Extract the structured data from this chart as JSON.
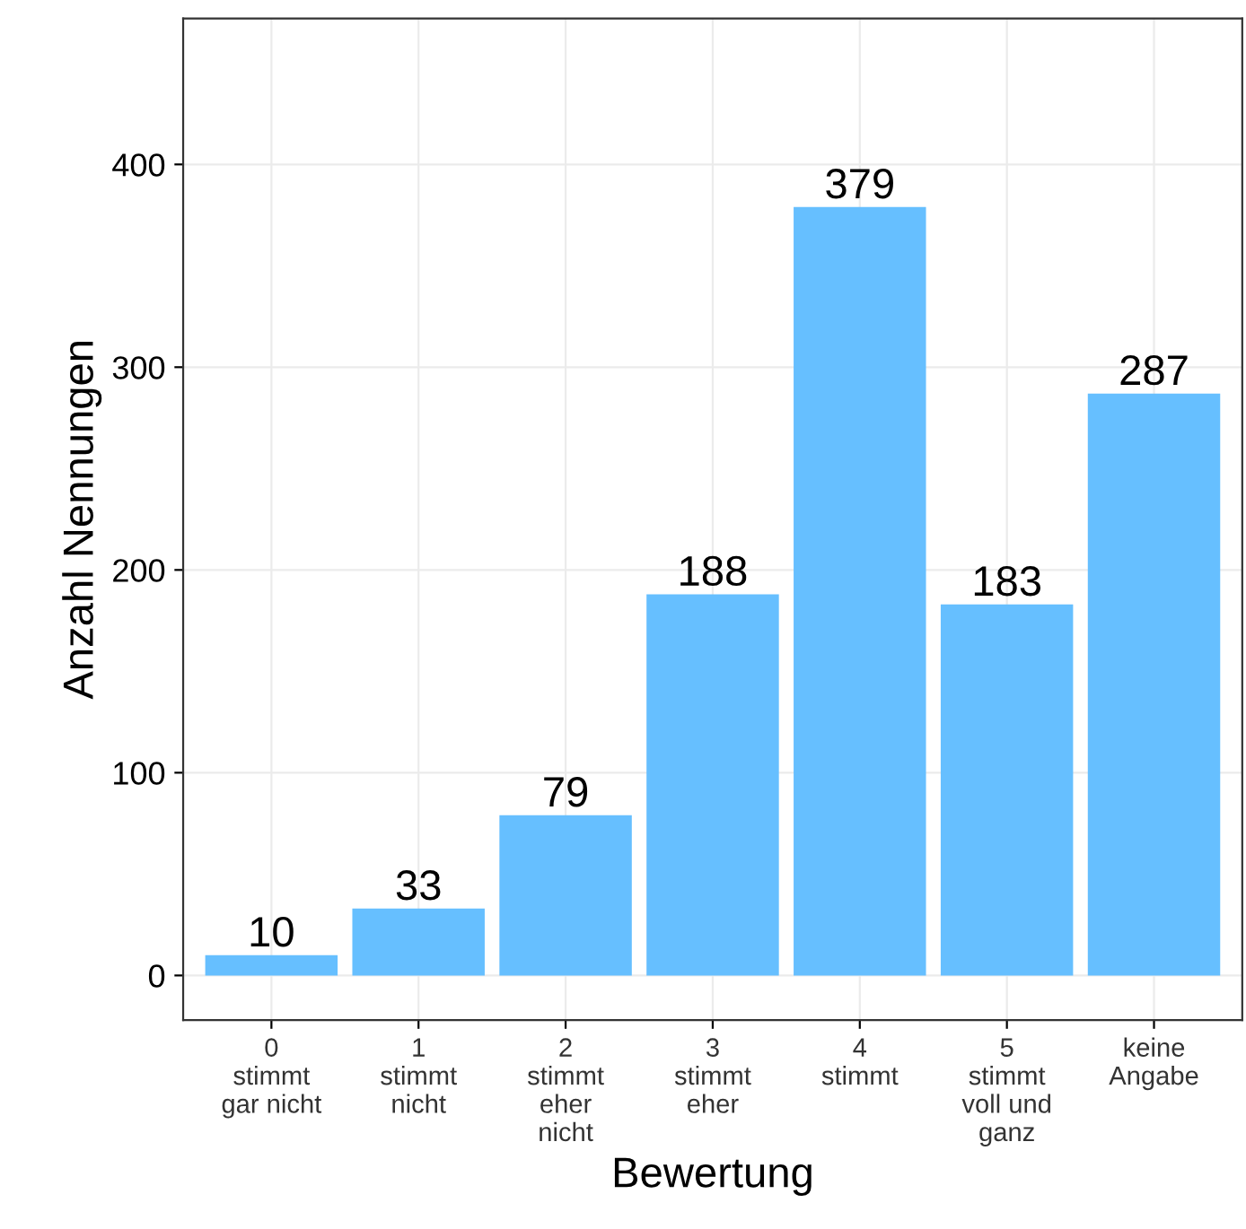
{
  "chart_data": {
    "type": "bar",
    "xlabel": "Bewertung",
    "ylabel": "Anzahl Nennungen",
    "categories": [
      "0\nstimmt\ngar nicht",
      "1\nstimmt\nnicht",
      "2\nstimmt\neher\nnicht",
      "3\nstimmt\neher",
      "4\nstimmt",
      "5\nstimmt\nvoll und\nganz",
      "keine\nAngabe"
    ],
    "values": [
      10,
      33,
      79,
      188,
      379,
      183,
      287
    ],
    "color": "#66bfff",
    "ylim": [
      -22,
      472
    ],
    "yticks": [
      0,
      100,
      200,
      300,
      400
    ],
    "grid": true,
    "data_labels": true
  }
}
